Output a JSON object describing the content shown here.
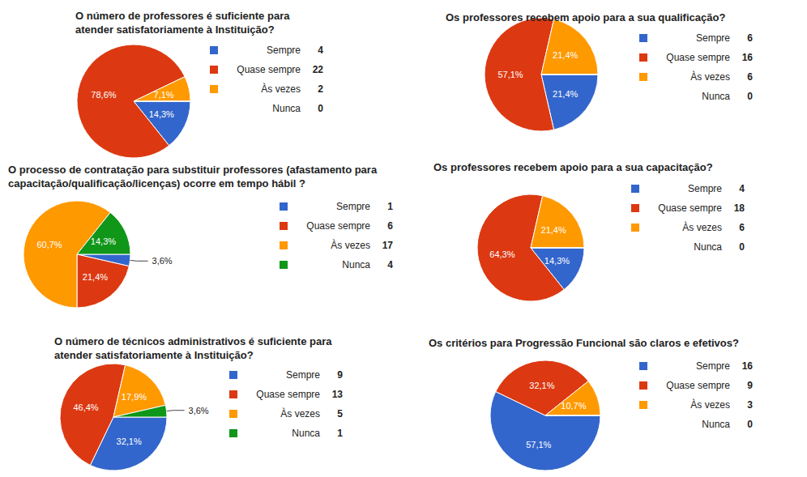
{
  "chart_data": [
    {
      "type": "pie",
      "title": "O número de professores é suficiente para atender satisfatoriamente à Instituição?",
      "categories": [
        "Sempre",
        "Quase sempre",
        "Às vezes",
        "Nunca"
      ],
      "values": [
        4,
        22,
        2,
        0
      ],
      "slice_labels": [
        "14,3%",
        "78,6%",
        "7,1%",
        null
      ],
      "colors": [
        "#3366cc",
        "#dc3912",
        "#ff9900",
        "#109618"
      ],
      "legend": "right"
    },
    {
      "type": "pie",
      "title": "Os professores recebem apoio para a sua qualificação?",
      "categories": [
        "Sempre",
        "Quase sempre",
        "Às vezes",
        "Nunca"
      ],
      "values": [
        6,
        16,
        6,
        0
      ],
      "slice_labels": [
        "21,4%",
        "57,1%",
        "21,4%",
        null
      ],
      "colors": [
        "#3366cc",
        "#dc3912",
        "#ff9900",
        "#109618"
      ],
      "legend": "right"
    },
    {
      "type": "pie",
      "title": "O processo de contratação para substituir professores (afastamento para capacitação/qualificação/licenças) ocorre em tempo hábil ?",
      "categories": [
        "Sempre",
        "Quase sempre",
        "Às vezes",
        "Nunca"
      ],
      "values": [
        1,
        6,
        17,
        4
      ],
      "slice_labels": [
        "3,6%",
        "21,4%",
        "60,7%",
        "14,3%"
      ],
      "colors": [
        "#3366cc",
        "#dc3912",
        "#ff9900",
        "#109618"
      ],
      "legend": "right"
    },
    {
      "type": "pie",
      "title": "Os professores recebem apoio para a sua capacitação?",
      "categories": [
        "Sempre",
        "Quase sempre",
        "Às vezes",
        "Nunca"
      ],
      "values": [
        4,
        18,
        6,
        0
      ],
      "slice_labels": [
        "14,3%",
        "64,3%",
        "21,4%",
        null
      ],
      "colors": [
        "#3366cc",
        "#dc3912",
        "#ff9900",
        "#109618"
      ],
      "legend": "right"
    },
    {
      "type": "pie",
      "title": "O número de técnicos administrativos é suficiente para atender satisfatoriamente à Instituição?",
      "categories": [
        "Sempre",
        "Quase sempre",
        "Às vezes",
        "Nunca"
      ],
      "values": [
        9,
        13,
        5,
        1
      ],
      "slice_labels": [
        "32,1%",
        "46,4%",
        "17,9%",
        "3,6%"
      ],
      "colors": [
        "#3366cc",
        "#dc3912",
        "#ff9900",
        "#109618"
      ],
      "legend": "right"
    },
    {
      "type": "pie",
      "title": "Os critérios para Progressão Funcional são claros e efetivos?",
      "categories": [
        "Sempre",
        "Quase sempre",
        "Às vezes",
        "Nunca"
      ],
      "values": [
        16,
        9,
        3,
        0
      ],
      "slice_labels": [
        "57,1%",
        "32,1%",
        "10,7%",
        null
      ],
      "colors": [
        "#3366cc",
        "#dc3912",
        "#ff9900",
        "#109618"
      ],
      "legend": "right"
    }
  ]
}
